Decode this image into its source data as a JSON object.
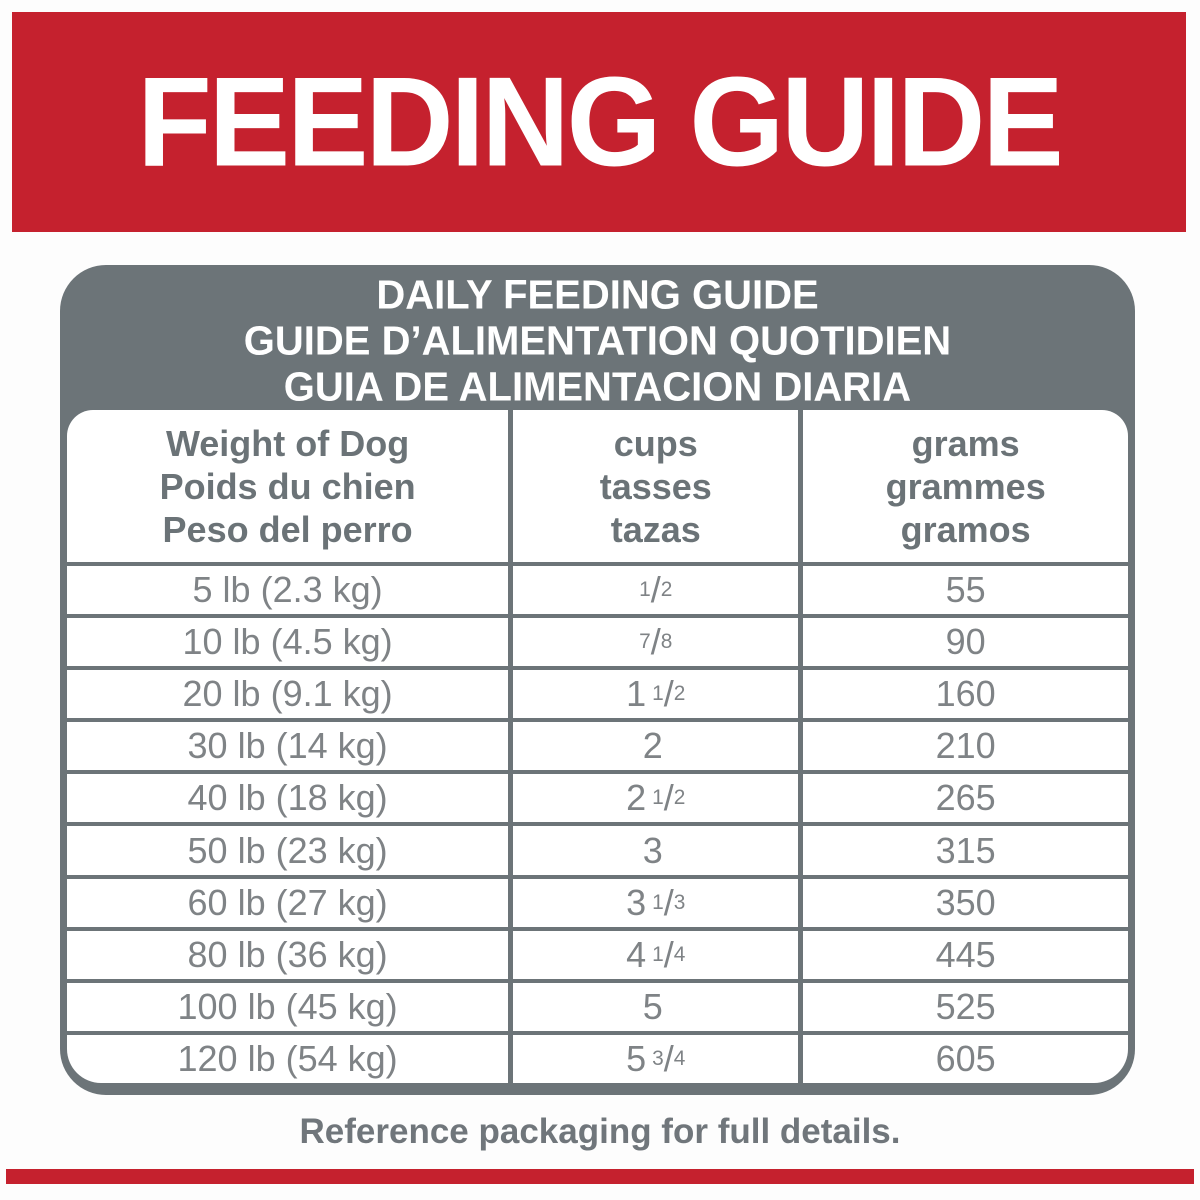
{
  "banner": {
    "title": "FEEDING GUIDE"
  },
  "table": {
    "title_lines": [
      "DAILY FEEDING GUIDE",
      "GUIDE D’ALIMENTATION QUOTIDIEN",
      "GUIA DE ALIMENTACION DIARIA"
    ],
    "columns": [
      {
        "lines": [
          "Weight of Dog",
          "Poids du chien",
          "Peso del perro"
        ]
      },
      {
        "lines": [
          "cups",
          "tasses",
          "tazas"
        ]
      },
      {
        "lines": [
          "grams",
          "grammes",
          "gramos"
        ]
      }
    ],
    "rows": [
      {
        "weight": "5 lb (2.3 kg)",
        "cups": "1/2",
        "grams": "55"
      },
      {
        "weight": "10 lb (4.5 kg)",
        "cups": "7/8",
        "grams": "90"
      },
      {
        "weight": "20 lb (9.1 kg)",
        "cups": "1 1/2",
        "grams": "160"
      },
      {
        "weight": "30 lb (14 kg)",
        "cups": "2",
        "grams": "210"
      },
      {
        "weight": "40 lb (18 kg)",
        "cups": "2 1/2",
        "grams": "265"
      },
      {
        "weight": "50 lb (23 kg)",
        "cups": "3",
        "grams": "315"
      },
      {
        "weight": "60 lb (27 kg)",
        "cups": "3 1/3",
        "grams": "350"
      },
      {
        "weight": "80 lb (36 kg)",
        "cups": "4 1/4",
        "grams": "445"
      },
      {
        "weight": "100 lb (45 kg)",
        "cups": "5",
        "grams": "525"
      },
      {
        "weight": "120 lb (54 kg)",
        "cups": "5 3/4",
        "grams": "605"
      }
    ]
  },
  "footer": {
    "note": "Reference packaging for full details."
  },
  "colors": {
    "red": "#c5212e",
    "gray": "#6c7478",
    "head-text": "#6b7377",
    "body-text": "#7f8386",
    "foot-text": "#70767b"
  }
}
